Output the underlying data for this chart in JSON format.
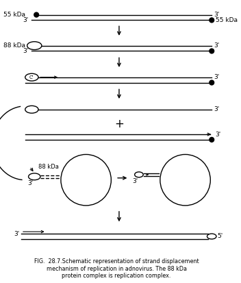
{
  "bg_color": "#ffffff",
  "line_color": "#000000",
  "fig_width": 3.52,
  "fig_height": 4.13,
  "caption_line1": "FIG.  28.7.Schematic representation of strand displacement",
  "caption_line2": "mechanism of replication in adnovirus. The 88 kDa",
  "caption_line3": "protein complex is replication complex."
}
